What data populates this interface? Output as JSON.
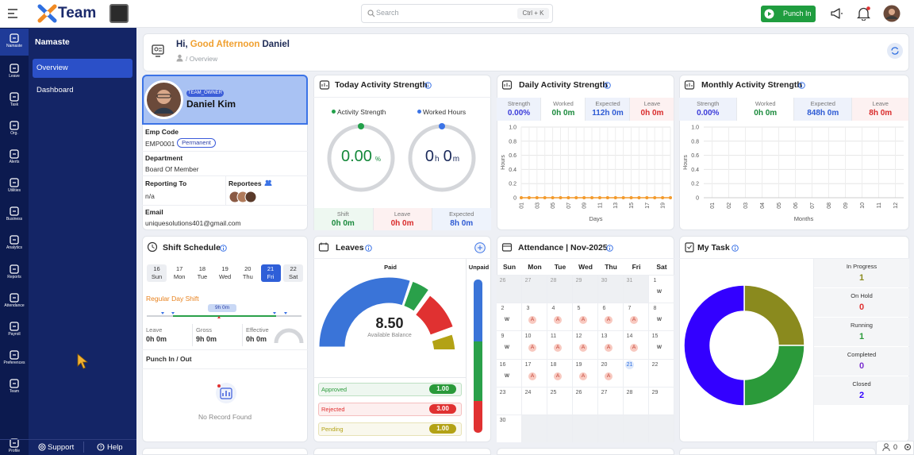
{
  "topbar": {
    "brand": "Team",
    "search": "Search",
    "shortcut": "Ctrl + K",
    "punch_in": "Punch In"
  },
  "sidebar": [
    "Namaste",
    "Leave",
    "Task",
    "Org.",
    "Alerts",
    "Utilities",
    "Business",
    "Analytics",
    "Reports",
    "Attendance",
    "Payroll",
    "Preferences",
    "Team",
    "Profile"
  ],
  "submenu": {
    "title": "Namaste",
    "items": [
      "Overview",
      "Dashboard"
    ],
    "support": "Support",
    "help": "Help"
  },
  "header": {
    "hi": "Hi,",
    "greeting": "Good Afternoon",
    "name": "Daniel",
    "breadcrumb": "/ Overview"
  },
  "profile": {
    "role": "TEAM_OWNER",
    "name": "Daniel Kim",
    "emp_code_label": "Emp Code",
    "emp_code": "EMP0001",
    "emp_type": "Permanent",
    "department_label": "Department",
    "department": "Board Of Member",
    "reporting_label": "Reporting To",
    "reporting": "n/a",
    "reportees_label": "Reportees",
    "email_label": "Email",
    "email": "uniquesolutions401@gmail.com"
  },
  "today": {
    "title": "Today Activity Strength",
    "legend": [
      "Activity Strength",
      "Worked Hours"
    ],
    "strength": "0.00",
    "strength_unit": "%",
    "hours": "0",
    "hours_unit": "h",
    "minutes": "0",
    "minutes_unit": "m",
    "stats": [
      {
        "label": "Shift",
        "value": "0h 0m",
        "color": "#1a8a3c"
      },
      {
        "label": "Leave",
        "value": "0h 0m",
        "color": "#d92b2b"
      },
      {
        "label": "Expected",
        "value": "8h 0m",
        "color": "#2e5bd4"
      }
    ]
  },
  "daily": {
    "title": "Daily Activity Strength",
    "stats": [
      {
        "label": "Strength",
        "value": "0.00%",
        "color": "#3b3bd9"
      },
      {
        "label": "Worked",
        "value": "0h 0m",
        "color": "#1a8a3c"
      },
      {
        "label": "Expected",
        "value": "112h 0m",
        "color": "#2e5bd4"
      },
      {
        "label": "Leave",
        "value": "0h 0m",
        "color": "#d92b2b"
      }
    ],
    "chart": {
      "type": "line",
      "x_label": "Days",
      "y_label": "Hours",
      "categories": [
        "01",
        null,
        "03",
        null,
        "05",
        null,
        "07",
        null,
        "09",
        null,
        "11",
        null,
        "13",
        null,
        "15",
        null,
        "17",
        null,
        "19",
        null
      ],
      "values": [
        0,
        0,
        0,
        0,
        0,
        0,
        0,
        0,
        0,
        0,
        0,
        0,
        0,
        0,
        0,
        0,
        0,
        0,
        0,
        0
      ],
      "color": "#f39a2b",
      "ylim": [
        0,
        1
      ],
      "yticks": [
        0,
        0.2,
        0.4,
        0.6,
        0.8,
        {
          "value": 1,
          "label": "1.0"
        }
      ],
      "grid": true
    }
  },
  "monthly": {
    "title": "Monthly Activity Strength",
    "stats": [
      {
        "label": "Strength",
        "value": "0.00%",
        "color": "#3b3bd9"
      },
      {
        "label": "Worked",
        "value": "0h 0m",
        "color": "#1a8a3c"
      },
      {
        "label": "Expected",
        "value": "848h 0m",
        "color": "#2e5bd4"
      },
      {
        "label": "Leave",
        "value": "8h 0m",
        "color": "#d92b2b"
      }
    ],
    "chart": {
      "type": "line",
      "x_label": "Months",
      "y_label": "Hours",
      "categories": [
        "01",
        "02",
        "03",
        "04",
        "05",
        "06",
        "07",
        "08",
        "09",
        "10",
        "11",
        "12"
      ],
      "ylim": [
        0,
        1
      ],
      "yticks": [
        0,
        0.2,
        0.4,
        0.6,
        0.8,
        {
          "value": 1,
          "label": "1.0"
        }
      ],
      "grid": true
    }
  },
  "schedule": {
    "title": "Shift Schedule",
    "days": [
      {
        "date": "16",
        "day": "Sun",
        "weekend": true
      },
      {
        "date": "17",
        "day": "Mon"
      },
      {
        "date": "18",
        "day": "Tue"
      },
      {
        "date": "19",
        "day": "Wed"
      },
      {
        "date": "20",
        "day": "Thu"
      },
      {
        "date": "21",
        "day": "Fri",
        "selected": true
      },
      {
        "date": "22",
        "day": "Sat",
        "weekend": true
      }
    ],
    "shift": "Regular Day Shift",
    "duration": "9h 0m",
    "stats": [
      {
        "label": "Leave",
        "value": "0h 0m"
      },
      {
        "label": "Gross",
        "value": "9h 0m"
      },
      {
        "label": "Effective",
        "value": "0h 0m"
      }
    ],
    "punch_title": "Punch In / Out",
    "empty": "No Record Found"
  },
  "leaves": {
    "title": "Leaves",
    "paid": "Paid",
    "unpaid": "Unpaid",
    "balance": "8.50",
    "balance_label": "Available Balance",
    "items": [
      {
        "label": "Approved",
        "value": "1.00",
        "color": "#2a9a3a"
      },
      {
        "label": "Rejected",
        "value": "3.00",
        "color": "#e03131"
      },
      {
        "label": "Pending",
        "value": "1.00",
        "color": "#b3a215"
      }
    ]
  },
  "attendance": {
    "title": "Attendance | Nov-2025",
    "weekdays": [
      "Sun",
      "Mon",
      "Tue",
      "Wed",
      "Thu",
      "Fri",
      "Sat"
    ],
    "weeks": [
      [
        {
          "day": "26",
          "other_month": true
        },
        {
          "day": "27",
          "other_month": true
        },
        {
          "day": "28",
          "other_month": true
        },
        {
          "day": "29",
          "other_month": true
        },
        {
          "day": "30",
          "other_month": true
        },
        {
          "day": "31",
          "other_month": true
        },
        {
          "day": "1",
          "status": "W"
        }
      ],
      [
        {
          "day": "2",
          "status": "W"
        },
        {
          "day": "3",
          "status": "A"
        },
        {
          "day": "4",
          "status": "A"
        },
        {
          "day": "5",
          "status": "A"
        },
        {
          "day": "6",
          "status": "A"
        },
        {
          "day": "7",
          "status": "A"
        },
        {
          "day": "8",
          "status": "W"
        }
      ],
      [
        {
          "day": "9",
          "status": "W"
        },
        {
          "day": "10",
          "status": "A"
        },
        {
          "day": "11",
          "status": "A"
        },
        {
          "day": "12",
          "status": "A"
        },
        {
          "day": "13",
          "status": "A"
        },
        {
          "day": "14",
          "status": "A"
        },
        {
          "day": "15",
          "status": "W"
        }
      ],
      [
        {
          "day": "16",
          "status": "W"
        },
        {
          "day": "17",
          "status": "A"
        },
        {
          "day": "18",
          "status": "A"
        },
        {
          "day": "19",
          "status": "A"
        },
        {
          "day": "20",
          "status": "A"
        },
        {
          "day": "21",
          "today": true
        },
        {
          "day": "22"
        }
      ],
      [
        {
          "day": "23"
        },
        {
          "day": "24"
        },
        {
          "day": "25"
        },
        {
          "day": "26"
        },
        {
          "day": "27"
        },
        {
          "day": "28"
        },
        {
          "day": "29"
        }
      ],
      [
        {
          "day": "30"
        },
        {
          "other_month": true
        },
        {
          "other_month": true
        },
        {
          "other_month": true
        },
        {
          "other_month": true
        },
        {
          "other_month": true
        },
        {
          "other_month": true
        }
      ]
    ]
  },
  "tasks": {
    "title": "My Task",
    "type": "doughnut",
    "items": [
      {
        "label": "In Progress",
        "value": 1,
        "color": "#8a8a1e"
      },
      {
        "label": "On Hold",
        "value": 0,
        "color": "#e03131"
      },
      {
        "label": "Running",
        "value": 1,
        "color": "#2b9a3a"
      },
      {
        "label": "Completed",
        "value": 0,
        "color": "#7b2fd0"
      },
      {
        "label": "Closed",
        "value": 2,
        "color": "#3300ff"
      }
    ]
  },
  "footer": {
    "online": "0"
  }
}
